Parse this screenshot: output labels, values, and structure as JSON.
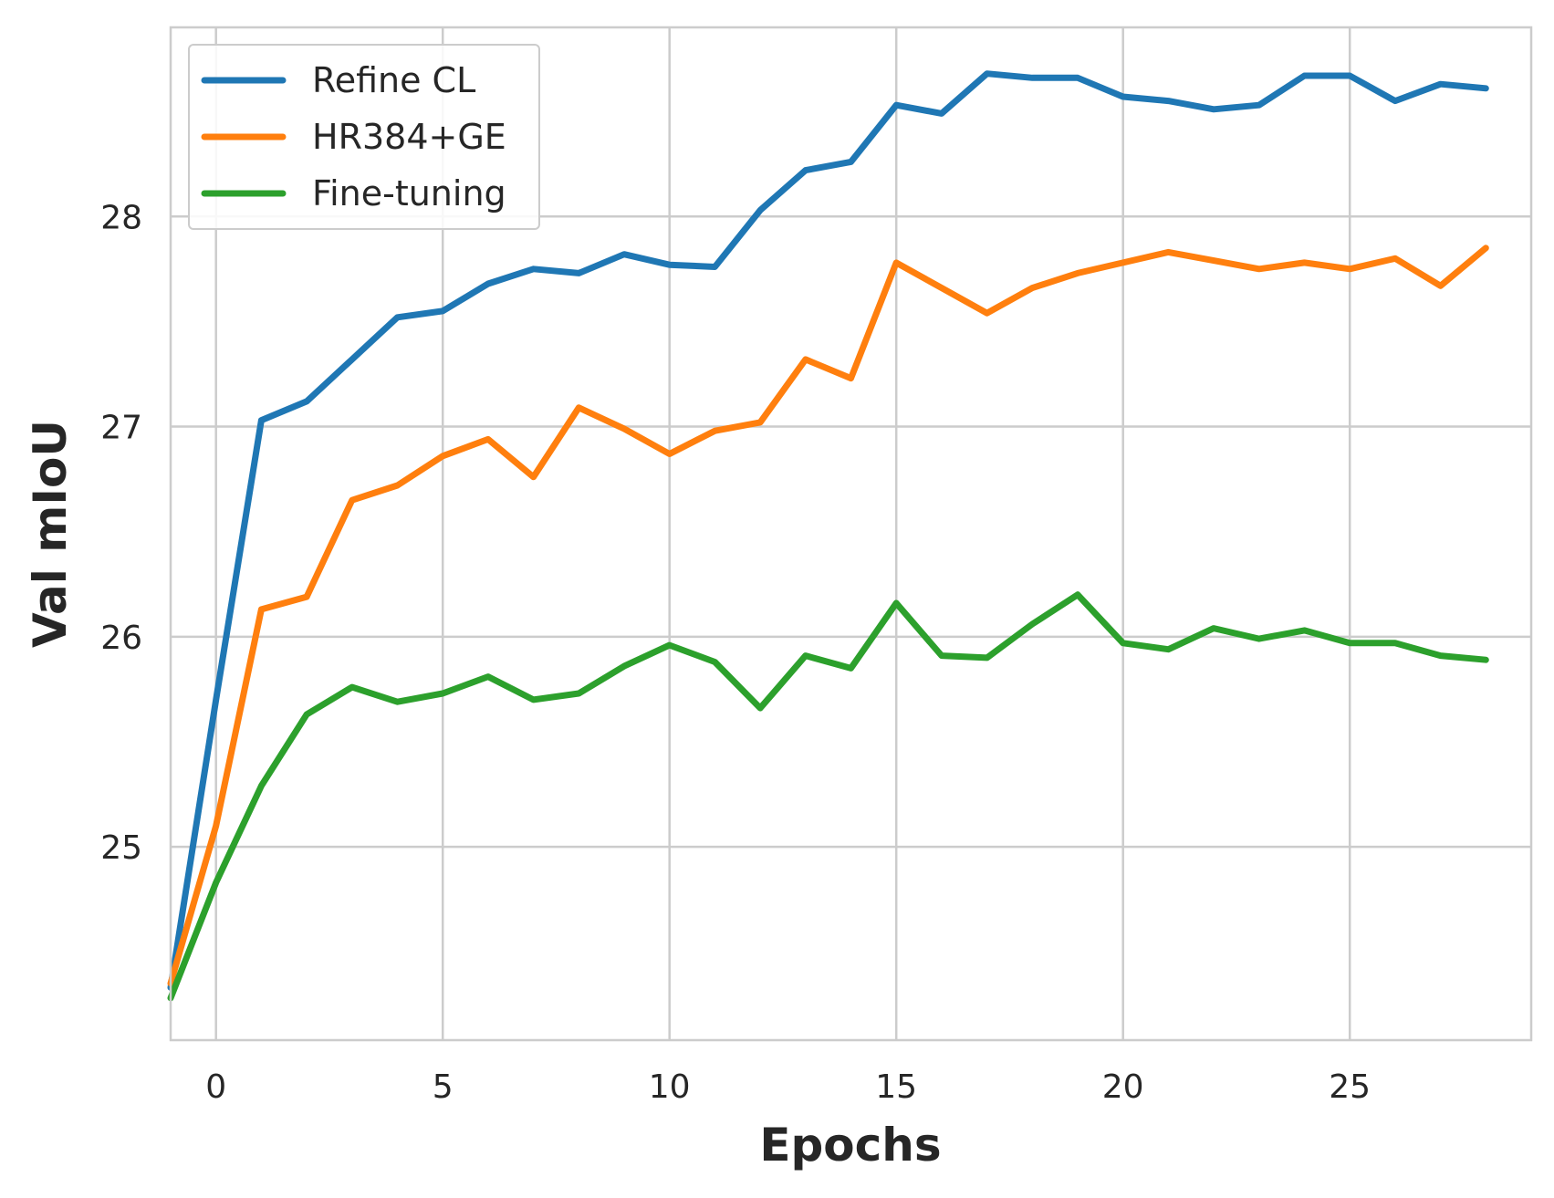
{
  "chart_data": {
    "type": "line",
    "xlabel": "Epochs",
    "ylabel": "Val mIoU",
    "xlim": [
      -1,
      29
    ],
    "ylim": [
      24.08,
      28.9
    ],
    "xticks": [
      0,
      5,
      10,
      15,
      20,
      25
    ],
    "yticks": [
      25,
      26,
      27,
      28
    ],
    "grid": true,
    "legend_position": "upper-left",
    "x": [
      -1,
      0,
      1,
      2,
      3,
      4,
      5,
      6,
      7,
      8,
      9,
      10,
      11,
      12,
      13,
      14,
      15,
      16,
      17,
      18,
      19,
      20,
      21,
      22,
      23,
      24,
      25,
      26,
      27,
      28
    ],
    "series": [
      {
        "name": "Refine CL",
        "color": "#1f77b4",
        "values": [
          24.33,
          25.7,
          27.03,
          27.12,
          27.32,
          27.52,
          27.55,
          27.68,
          27.75,
          27.73,
          27.82,
          27.77,
          27.76,
          28.03,
          28.22,
          28.26,
          28.53,
          28.49,
          28.68,
          28.66,
          28.66,
          28.57,
          28.55,
          28.51,
          28.53,
          28.67,
          28.67,
          28.55,
          28.63,
          28.61
        ]
      },
      {
        "name": "HR384+GE",
        "color": "#ff7f0e",
        "values": [
          24.35,
          25.1,
          26.13,
          26.19,
          26.65,
          26.72,
          26.86,
          26.94,
          26.76,
          27.09,
          26.99,
          26.87,
          26.98,
          27.02,
          27.32,
          27.23,
          27.78,
          27.66,
          27.54,
          27.66,
          27.73,
          27.78,
          27.83,
          27.79,
          27.75,
          27.78,
          27.75,
          27.8,
          27.67,
          27.85
        ]
      },
      {
        "name": "Fine-tuning",
        "color": "#2ca02c",
        "values": [
          24.28,
          24.83,
          25.29,
          25.63,
          25.76,
          25.69,
          25.73,
          25.81,
          25.7,
          25.73,
          25.86,
          25.96,
          25.88,
          25.66,
          25.91,
          25.85,
          26.16,
          25.91,
          25.9,
          26.06,
          26.2,
          25.97,
          25.94,
          26.04,
          25.99,
          26.03,
          25.97,
          25.97,
          25.91,
          25.89
        ]
      }
    ]
  }
}
